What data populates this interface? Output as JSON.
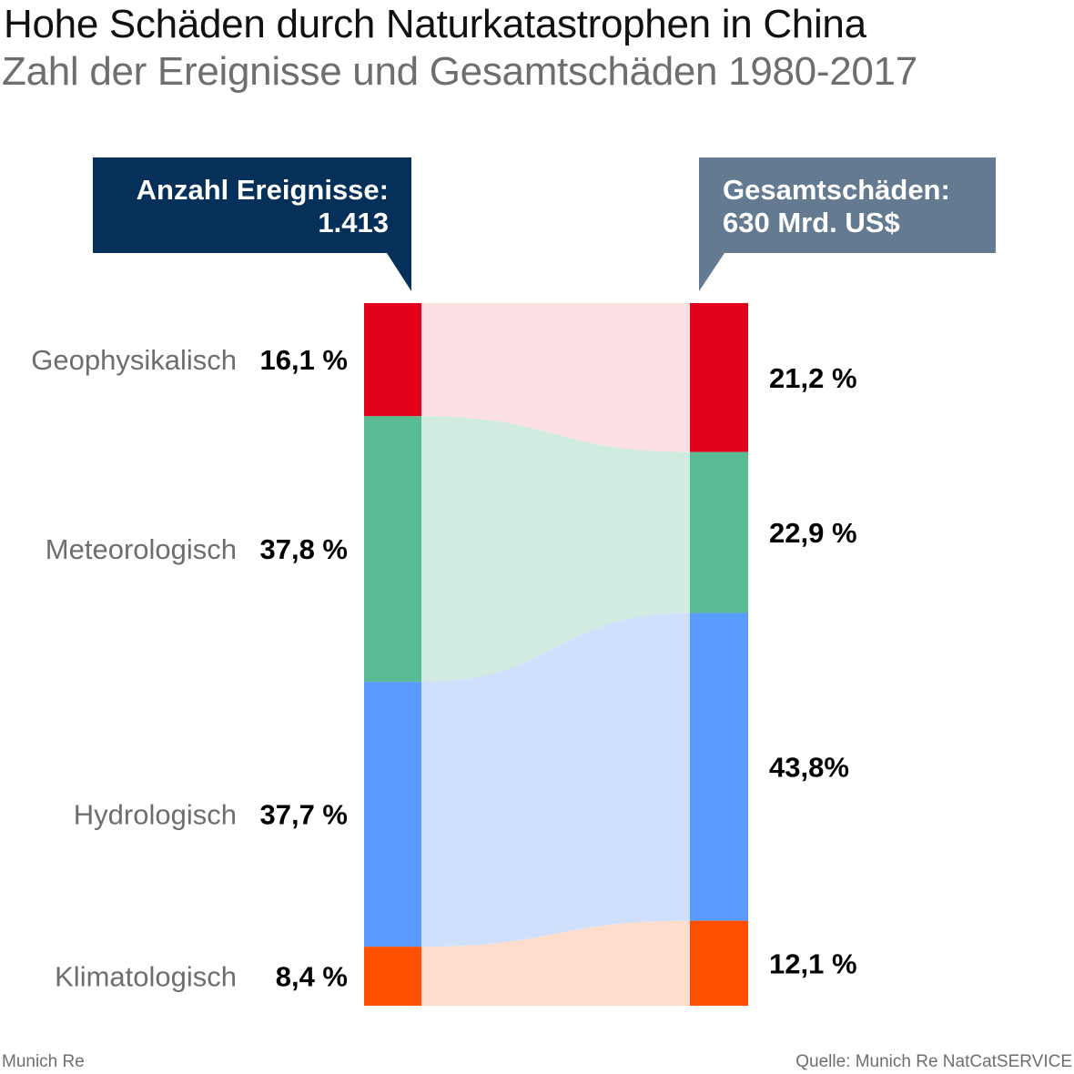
{
  "title": "Hohe Schäden durch Naturkatastrophen in China",
  "subtitle": "Zahl der Ereignisse und Gesamtschäden 1980-2017",
  "footer_left": "Munich Re",
  "footer_right": "Quelle: Munich Re NatCatSERVICE",
  "chart_data": {
    "type": "sankey",
    "left_header": {
      "label": "Anzahl Ereignisse:",
      "value": "1.413",
      "color": "#05305a"
    },
    "right_header": {
      "label": "Gesamtschäden:",
      "value": "630 Mrd. US$",
      "color": "#637a91"
    },
    "categories": [
      "Geophysikalisch",
      "Meteorologisch",
      "Hydrologisch",
      "Klimatologisch"
    ],
    "colors": [
      "#e2001a",
      "#58bb93",
      "#5a9bff",
      "#ff4f00"
    ],
    "flow_colors": [
      "#fce0e4",
      "#d0ebe0",
      "#cfe0fd",
      "#ffdccc"
    ],
    "left_values": [
      16.1,
      37.8,
      37.7,
      8.4
    ],
    "right_values": [
      21.2,
      22.9,
      43.8,
      12.1
    ],
    "left_labels": [
      "16,1 %",
      "37,8 %",
      "37,7 %",
      "8,4 %"
    ],
    "right_labels": [
      "21,2 %",
      "22,9 %",
      "43,8%",
      "12,1 %"
    ]
  }
}
